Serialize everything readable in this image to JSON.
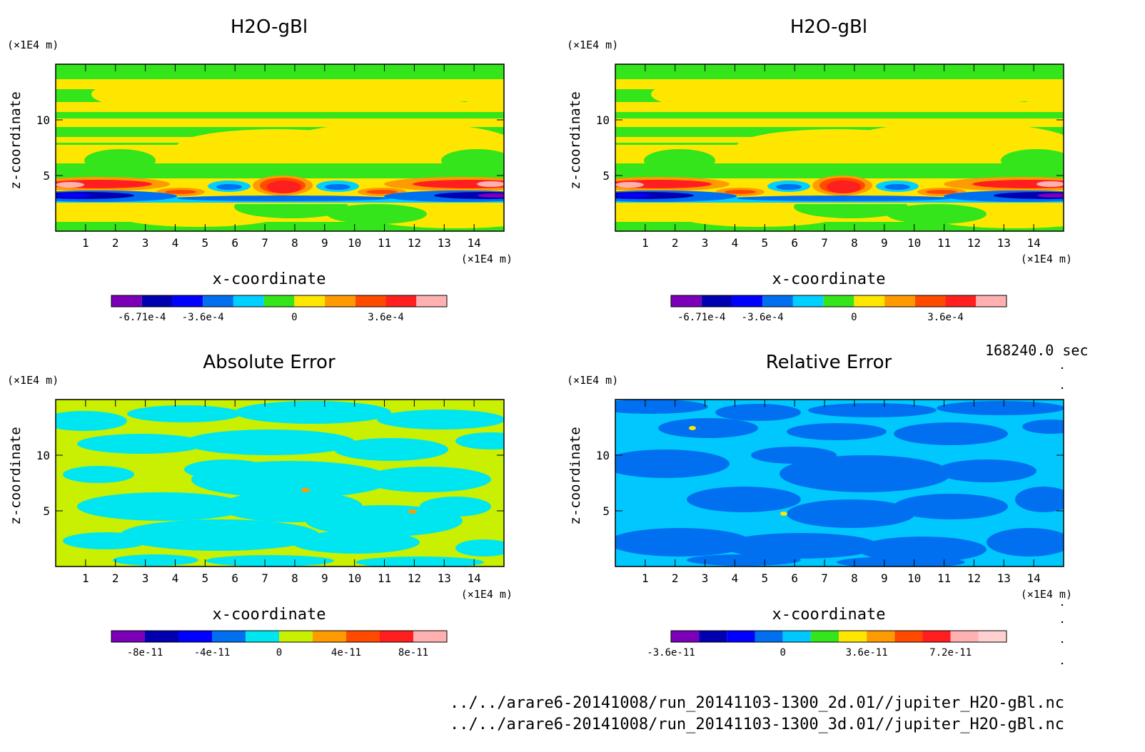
{
  "chart_data": [
    {
      "type": "heatmap",
      "title": "H2O-gBl",
      "xlabel": "x-coordinate",
      "ylabel": "z-coordinate",
      "x_unit": "(×1E4 m)",
      "y_unit": "(×1E4 m)",
      "xlim": [
        0,
        15
      ],
      "ylim": [
        0,
        15
      ],
      "x_ticks": [
        "1",
        "2",
        "3",
        "4",
        "5",
        "6",
        "7",
        "8",
        "9",
        "10",
        "11",
        "12",
        "13",
        "14"
      ],
      "y_ticks": [
        "5",
        "10"
      ],
      "colorbar": {
        "colors": [
          "#7b00b8",
          "#0000b0",
          "#0000ff",
          "#0070f0",
          "#00d0ff",
          "#33e51a",
          "#ffe600",
          "#ff9a00",
          "#ff4a00",
          "#ff1f1f",
          "#ffb0b0"
        ],
        "tick_labels": [
          "-6.71e-4",
          "-3.6e-4",
          "0",
          "3.6e-4"
        ],
        "tick_index": [
          1,
          3,
          6,
          9
        ]
      }
    },
    {
      "type": "heatmap",
      "title": "H2O-gBl",
      "xlabel": "x-coordinate",
      "ylabel": "z-coordinate",
      "x_unit": "(×1E4 m)",
      "y_unit": "(×1E4 m)",
      "xlim": [
        0,
        15
      ],
      "ylim": [
        0,
        15
      ],
      "x_ticks": [
        "1",
        "2",
        "3",
        "4",
        "5",
        "6",
        "7",
        "8",
        "9",
        "10",
        "11",
        "12",
        "13",
        "14"
      ],
      "y_ticks": [
        "5",
        "10"
      ],
      "colorbar": {
        "colors": [
          "#7b00b8",
          "#0000b0",
          "#0000ff",
          "#0070f0",
          "#00d0ff",
          "#33e51a",
          "#ffe600",
          "#ff9a00",
          "#ff4a00",
          "#ff1f1f",
          "#ffb0b0"
        ],
        "tick_labels": [
          "-6.71e-4",
          "-3.6e-4",
          "0",
          "3.6e-4"
        ],
        "tick_index": [
          1,
          3,
          6,
          9
        ]
      }
    },
    {
      "type": "heatmap",
      "title": "Absolute Error",
      "xlabel": "x-coordinate",
      "ylabel": "z-coordinate",
      "x_unit": "(×1E4 m)",
      "y_unit": "(×1E4 m)",
      "xlim": [
        0,
        15
      ],
      "ylim": [
        0,
        15
      ],
      "x_ticks": [
        "1",
        "2",
        "3",
        "4",
        "5",
        "6",
        "7",
        "8",
        "9",
        "10",
        "11",
        "12",
        "13",
        "14"
      ],
      "y_ticks": [
        "5",
        "10"
      ],
      "colorbar": {
        "colors": [
          "#7b00b8",
          "#0000b0",
          "#0000ff",
          "#0070f0",
          "#00e6f0",
          "#c8f000",
          "#ff9a00",
          "#ff4a00",
          "#ff1f1f",
          "#ffb0b0"
        ],
        "tick_labels": [
          "-8e-11",
          "-4e-11",
          "0",
          "4e-11",
          "8e-11"
        ],
        "tick_index": [
          1,
          3,
          5,
          7,
          9
        ]
      }
    },
    {
      "type": "heatmap",
      "title": "Relative Error",
      "xlabel": "x-coordinate",
      "ylabel": "z-coordinate",
      "x_unit": "(×1E4 m)",
      "y_unit": "(×1E4 m)",
      "xlim": [
        0,
        15
      ],
      "ylim": [
        0,
        15
      ],
      "x_ticks": [
        "1",
        "2",
        "3",
        "4",
        "5",
        "6",
        "7",
        "8",
        "9",
        "10",
        "11",
        "12",
        "13",
        "14"
      ],
      "y_ticks": [
        "5",
        "10"
      ],
      "colorbar": {
        "colors": [
          "#7b00b8",
          "#0000b0",
          "#0000ff",
          "#0070f0",
          "#00c8ff",
          "#33e51a",
          "#ffe600",
          "#ff9a00",
          "#ff4a00",
          "#ff1f1f",
          "#ffb0b0",
          "#ffd0d0"
        ],
        "tick_labels": [
          "-3.6e-11",
          "0",
          "3.6e-11",
          "7.2e-11"
        ],
        "tick_index": [
          0,
          4,
          7,
          10
        ]
      }
    }
  ],
  "time_label": "168240.0 sec",
  "file_paths": [
    "../../arare6-20141008/run_20141103-1300_2d.01//jupiter_H2O-gBl.nc",
    "../../arare6-20141008/run_20141103-1300_3d.01//jupiter_H2O-gBl.nc"
  ]
}
